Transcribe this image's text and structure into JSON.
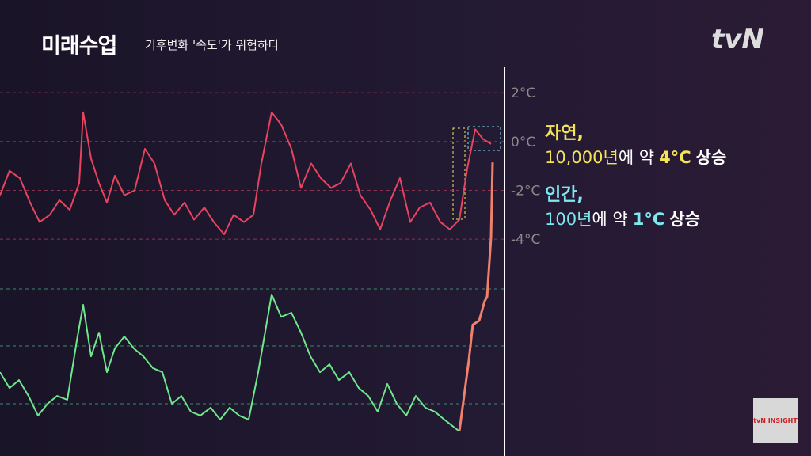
{
  "chart_data": {
    "type": "line",
    "header": {
      "logo": "미래수업",
      "subtitle": "기후변화 '속도'가 위험하다",
      "channel": "tvN",
      "badge": "tvN INSIGHT"
    },
    "xlim": [
      0,
      640
    ],
    "ylim": [
      -6.2,
      4.5
    ],
    "yticks": [
      {
        "value": 2,
        "label": "2°C"
      },
      {
        "value": 0,
        "label": "0°C"
      },
      {
        "value": -2,
        "label": "-2°C"
      },
      {
        "value": -4,
        "label": "-4°C"
      }
    ],
    "y2lim": [
      0,
      100
    ],
    "series": [
      {
        "color": "#e8435f",
        "x": [
          0,
          12,
          25,
          38,
          50,
          63,
          75,
          88,
          100,
          105,
          115,
          125,
          135,
          145,
          157,
          170,
          183,
          195,
          208,
          220,
          233,
          245,
          258,
          270,
          283,
          295,
          308,
          320,
          330,
          343,
          355,
          368,
          380,
          393,
          405,
          418,
          430,
          443,
          455,
          468,
          480,
          493,
          505,
          518,
          530,
          543,
          556,
          568,
          580,
          590,
          600,
          610,
          620
        ],
        "values": [
          -2.2,
          -1.2,
          -1.5,
          -2.5,
          -3.3,
          -3.0,
          -2.4,
          -2.8,
          -1.7,
          1.2,
          -0.7,
          -1.7,
          -2.5,
          -1.4,
          -2.2,
          -2.0,
          -0.3,
          -0.9,
          -2.4,
          -3.0,
          -2.5,
          -3.2,
          -2.7,
          -3.3,
          -3.8,
          -3.0,
          -3.3,
          -3.0,
          -0.9,
          1.2,
          0.7,
          -0.3,
          -1.9,
          -0.9,
          -1.5,
          -1.9,
          -1.7,
          -0.9,
          -2.2,
          -2.8,
          -3.6,
          -2.4,
          -1.5,
          -3.3,
          -2.7,
          -2.5,
          -3.3,
          -3.6,
          -3.2,
          -1.1,
          0.5,
          0.1,
          -0.1
        ]
      },
      {
        "color": "#6ee88a",
        "axis": "y2",
        "x": [
          0,
          12,
          24,
          36,
          48,
          60,
          72,
          85,
          97,
          105,
          115,
          125,
          135,
          145,
          157,
          169,
          181,
          193,
          205,
          217,
          229,
          241,
          253,
          266,
          278,
          290,
          302,
          314,
          326,
          343,
          355,
          368,
          380,
          392,
          404,
          416,
          428,
          441,
          453,
          465,
          477,
          489,
          501,
          513,
          525,
          537,
          549,
          561,
          580
        ],
        "values": [
          24.3,
          18.9,
          21.6,
          16.2,
          9.5,
          13.5,
          16.2,
          14.9,
          35.1,
          47.3,
          29.7,
          37.8,
          24.3,
          32.4,
          36.5,
          32.4,
          29.7,
          25.7,
          24.3,
          13.5,
          16.2,
          10.8,
          9.5,
          12.2,
          8.1,
          12.2,
          9.5,
          8.1,
          24.3,
          50.8,
          43.2,
          44.6,
          37.8,
          29.7,
          24.3,
          27.0,
          21.6,
          24.3,
          18.9,
          16.2,
          10.8,
          20.3,
          13.5,
          9.5,
          16.2,
          12.2,
          10.8,
          8.1,
          4.1
        ]
      },
      {
        "color": "#f0806a",
        "axis": "y2",
        "x": [
          580,
          592,
          597,
          605,
          612,
          615,
          620,
          622
        ],
        "values": [
          4.1,
          28.4,
          40.5,
          41.9,
          48.6,
          50,
          70.3,
          95.9
        ]
      }
    ],
    "annotations": [
      {
        "heading": "자연,",
        "color": "#f4e45a",
        "parts": [
          "10,000년",
          "에 약",
          "4°C",
          "상승"
        ]
      },
      {
        "heading": "인간,",
        "color": "#7ee8f0",
        "parts": [
          "100년",
          "에 약",
          "1°C",
          "상승"
        ]
      }
    ]
  }
}
